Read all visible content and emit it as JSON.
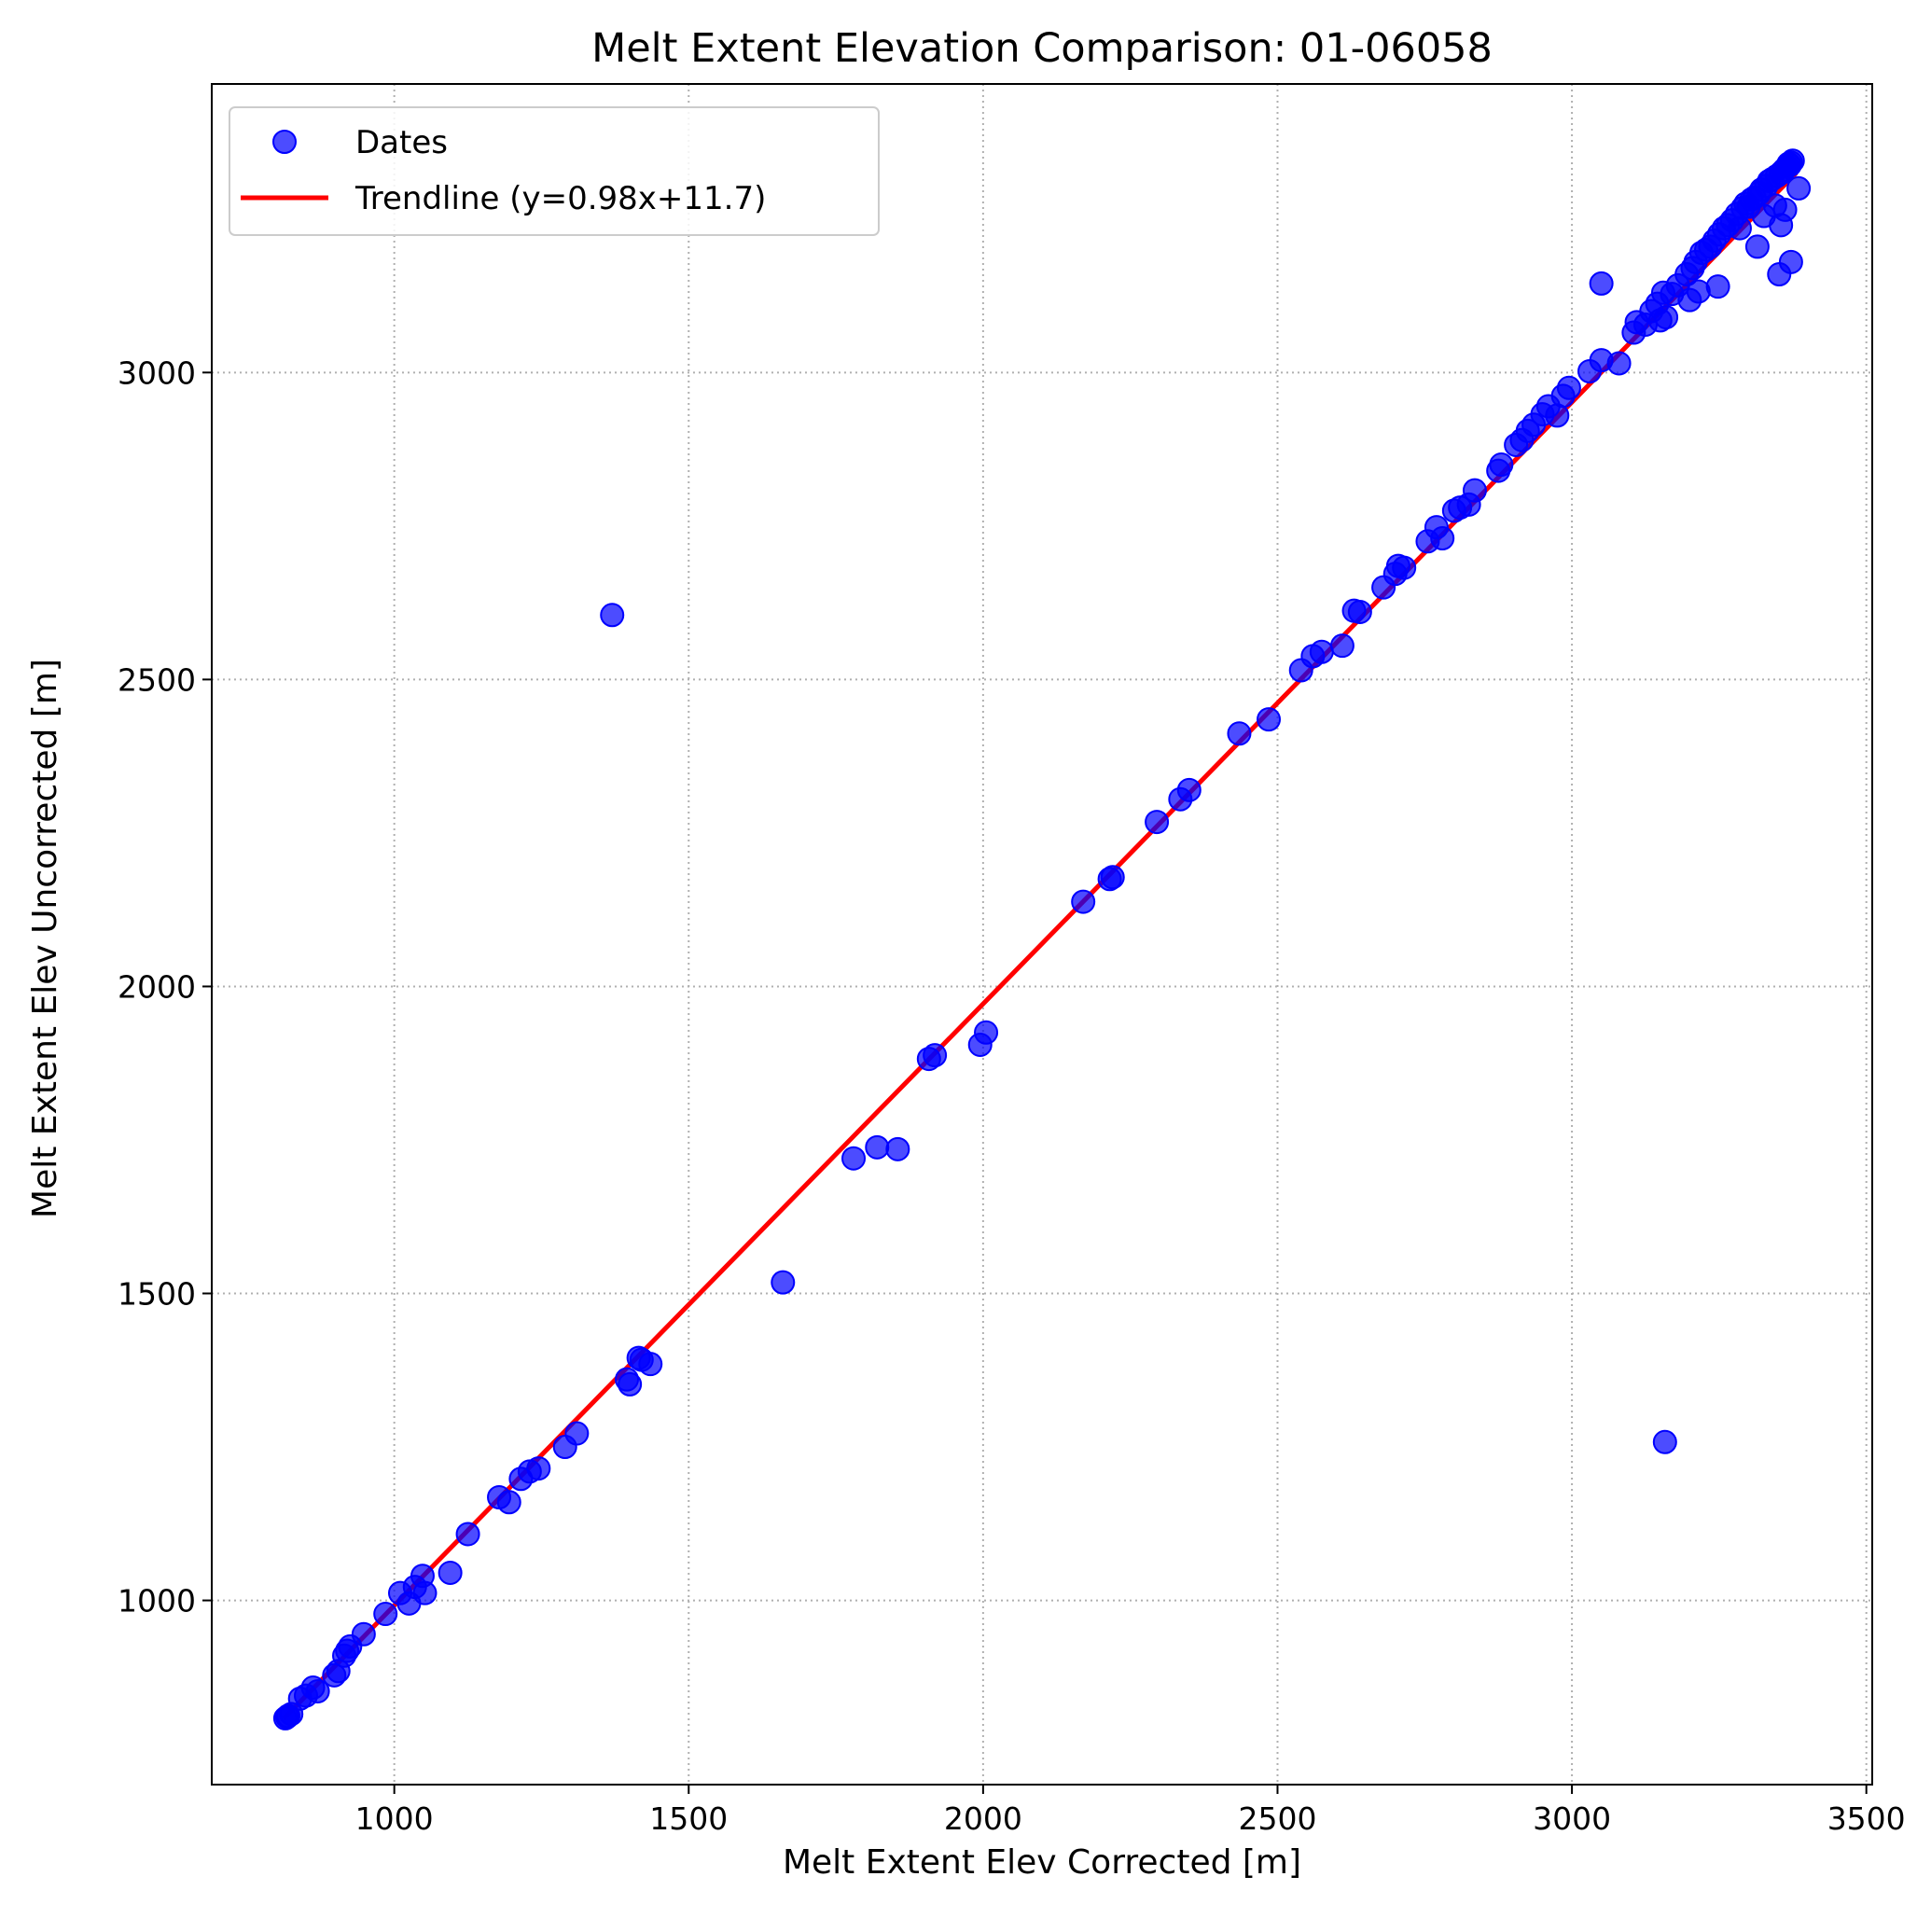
{
  "chart_data": {
    "type": "scatter",
    "title": "Melt Extent Elevation Comparison: 01-06058",
    "xlabel": "Melt Extent Elev Corrected [m]",
    "ylabel": "Melt Extent Elev Uncorrected [m]",
    "xlim": [
      690,
      3510
    ],
    "ylim": [
      700,
      3470
    ],
    "xticks": [
      1000,
      1500,
      2000,
      2500,
      3000,
      3500
    ],
    "yticks": [
      1000,
      1500,
      2000,
      2500,
      3000
    ],
    "grid": true,
    "legend_position": "upper-left",
    "scatter_color": "#0000ff",
    "trend_color": "#ff0000",
    "series": [
      {
        "name": "Dates",
        "type": "scatter",
        "points": [
          [
            815,
            808
          ],
          [
            818,
            810
          ],
          [
            820,
            812
          ],
          [
            825,
            815
          ],
          [
            840,
            840
          ],
          [
            850,
            845
          ],
          [
            862,
            858
          ],
          [
            870,
            852
          ],
          [
            898,
            878
          ],
          [
            905,
            885
          ],
          [
            915,
            910
          ],
          [
            920,
            918
          ],
          [
            925,
            925
          ],
          [
            948,
            945
          ],
          [
            985,
            978
          ],
          [
            1010,
            1012
          ],
          [
            1025,
            995
          ],
          [
            1035,
            1022
          ],
          [
            1048,
            1040
          ],
          [
            1052,
            1012
          ],
          [
            1095,
            1045
          ],
          [
            1125,
            1108
          ],
          [
            1178,
            1168
          ],
          [
            1195,
            1160
          ],
          [
            1215,
            1198
          ],
          [
            1230,
            1210
          ],
          [
            1245,
            1215
          ],
          [
            1290,
            1250
          ],
          [
            1310,
            1272
          ],
          [
            1370,
            2605
          ],
          [
            1395,
            1360
          ],
          [
            1400,
            1352
          ],
          [
            1415,
            1395
          ],
          [
            1420,
            1392
          ],
          [
            1435,
            1385
          ],
          [
            1660,
            1518
          ],
          [
            1780,
            1720
          ],
          [
            1820,
            1738
          ],
          [
            1855,
            1735
          ],
          [
            1908,
            1882
          ],
          [
            1918,
            1888
          ],
          [
            1995,
            1905
          ],
          [
            2005,
            1925
          ],
          [
            2170,
            2138
          ],
          [
            2215,
            2175
          ],
          [
            2220,
            2178
          ],
          [
            2295,
            2268
          ],
          [
            2335,
            2305
          ],
          [
            2350,
            2320
          ],
          [
            2435,
            2412
          ],
          [
            2485,
            2435
          ],
          [
            2540,
            2515
          ],
          [
            2560,
            2538
          ],
          [
            2575,
            2545
          ],
          [
            2610,
            2555
          ],
          [
            2630,
            2612
          ],
          [
            2640,
            2610
          ],
          [
            2680,
            2650
          ],
          [
            2700,
            2672
          ],
          [
            2705,
            2685
          ],
          [
            2715,
            2682
          ],
          [
            2755,
            2725
          ],
          [
            2770,
            2748
          ],
          [
            2780,
            2730
          ],
          [
            2800,
            2775
          ],
          [
            2810,
            2780
          ],
          [
            2825,
            2785
          ],
          [
            2835,
            2808
          ],
          [
            2875,
            2840
          ],
          [
            2880,
            2850
          ],
          [
            2905,
            2882
          ],
          [
            2915,
            2890
          ],
          [
            2925,
            2905
          ],
          [
            2935,
            2915
          ],
          [
            2950,
            2932
          ],
          [
            2960,
            2945
          ],
          [
            2975,
            2930
          ],
          [
            2985,
            2962
          ],
          [
            2995,
            2975
          ],
          [
            3030,
            3002
          ],
          [
            3050,
            3020
          ],
          [
            3050,
            3145
          ],
          [
            3080,
            3015
          ],
          [
            3105,
            3065
          ],
          [
            3110,
            3082
          ],
          [
            3125,
            3078
          ],
          [
            3135,
            3100
          ],
          [
            3145,
            3112
          ],
          [
            3150,
            3085
          ],
          [
            3155,
            3130
          ],
          [
            3158,
            1258
          ],
          [
            3160,
            3090
          ],
          [
            3170,
            3128
          ],
          [
            3180,
            3142
          ],
          [
            3195,
            3160
          ],
          [
            3200,
            3118
          ],
          [
            3205,
            3170
          ],
          [
            3210,
            3180
          ],
          [
            3215,
            3132
          ],
          [
            3220,
            3195
          ],
          [
            3228,
            3200
          ],
          [
            3235,
            3205
          ],
          [
            3242,
            3215
          ],
          [
            3248,
            3140
          ],
          [
            3250,
            3225
          ],
          [
            3258,
            3235
          ],
          [
            3265,
            3240
          ],
          [
            3272,
            3248
          ],
          [
            3280,
            3258
          ],
          [
            3285,
            3235
          ],
          [
            3290,
            3268
          ],
          [
            3295,
            3275
          ],
          [
            3300,
            3270
          ],
          [
            3305,
            3282
          ],
          [
            3310,
            3285
          ],
          [
            3315,
            3205
          ],
          [
            3318,
            3292
          ],
          [
            3322,
            3298
          ],
          [
            3326,
            3255
          ],
          [
            3330,
            3304
          ],
          [
            3335,
            3312
          ],
          [
            3340,
            3315
          ],
          [
            3345,
            3272
          ],
          [
            3348,
            3320
          ],
          [
            3352,
            3160
          ],
          [
            3355,
            3325
          ],
          [
            3355,
            3240
          ],
          [
            3360,
            3330
          ],
          [
            3362,
            3265
          ],
          [
            3365,
            3335
          ],
          [
            3368,
            3340
          ],
          [
            3370,
            3338
          ],
          [
            3372,
            3342
          ],
          [
            3372,
            3180
          ],
          [
            3375,
            3345
          ],
          [
            3385,
            3300
          ]
        ]
      },
      {
        "name": "Trendline (y=0.98x+11.7)",
        "type": "line",
        "slope": 0.98,
        "intercept": 11.7,
        "x_range": [
          815,
          3378
        ]
      }
    ]
  }
}
